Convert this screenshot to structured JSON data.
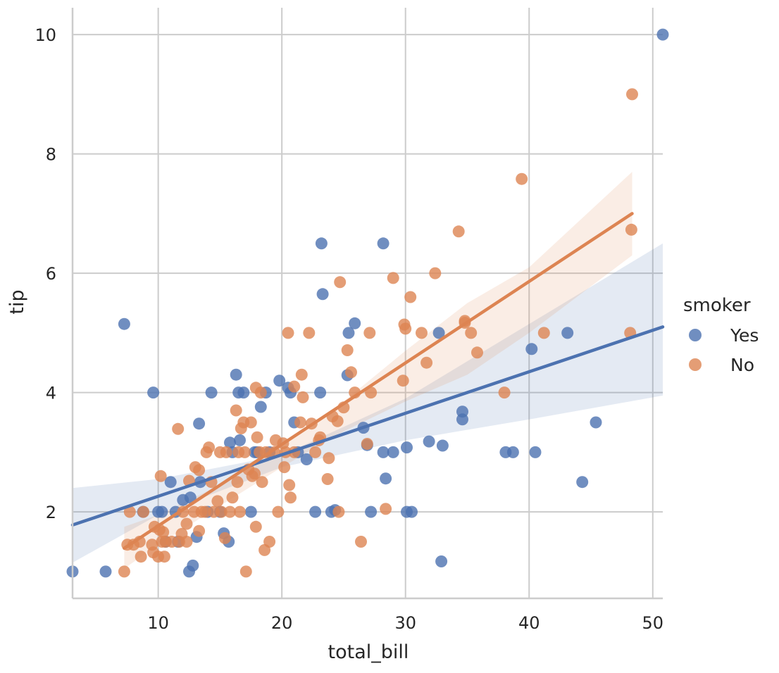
{
  "chart_data": {
    "type": "scatter",
    "xlabel": "total_bill",
    "ylabel": "tip",
    "xlim": [
      3.07,
      50.81
    ],
    "ylim": [
      0.55,
      10.45
    ],
    "xticks": [
      10,
      20,
      30,
      40,
      50
    ],
    "yticks": [
      2,
      4,
      6,
      8,
      10
    ],
    "grid": true,
    "legend": {
      "title": "smoker",
      "placement": "right"
    },
    "series": [
      {
        "name": "Yes",
        "color": "#4c72b0",
        "regression": {
          "x": [
            3.07,
            50.81
          ],
          "y": [
            1.78,
            5.1
          ]
        },
        "ci_band": {
          "x": [
            3.07,
            10,
            20,
            30,
            40,
            50.81
          ],
          "lower": [
            1.15,
            1.95,
            2.75,
            3.2,
            3.55,
            3.95
          ],
          "upper": [
            2.4,
            2.55,
            2.95,
            3.9,
            5.15,
            6.5
          ]
        },
        "points": [
          [
            3.07,
            1.0
          ],
          [
            5.75,
            1.0
          ],
          [
            7.25,
            5.15
          ],
          [
            8.77,
            2.0
          ],
          [
            9.6,
            4.0
          ],
          [
            10.0,
            2.0
          ],
          [
            10.3,
            2.0
          ],
          [
            10.6,
            1.5
          ],
          [
            11.0,
            2.5
          ],
          [
            11.4,
            2.0
          ],
          [
            11.6,
            1.5
          ],
          [
            12.0,
            2.2
          ],
          [
            12.5,
            1.0
          ],
          [
            12.6,
            2.24
          ],
          [
            12.8,
            1.1
          ],
          [
            13.1,
            1.58
          ],
          [
            13.3,
            3.48
          ],
          [
            13.4,
            2.5
          ],
          [
            14.0,
            2.0
          ],
          [
            14.3,
            4.0
          ],
          [
            15.0,
            2.0
          ],
          [
            15.3,
            1.64
          ],
          [
            15.7,
            1.5
          ],
          [
            15.8,
            3.16
          ],
          [
            16.0,
            3.0
          ],
          [
            16.3,
            4.3
          ],
          [
            16.5,
            4.0
          ],
          [
            16.6,
            3.2
          ],
          [
            16.9,
            4.0
          ],
          [
            17.5,
            2.0
          ],
          [
            17.8,
            3.0
          ],
          [
            18.0,
            3.0
          ],
          [
            18.3,
            3.76
          ],
          [
            18.7,
            4.0
          ],
          [
            19.0,
            3.0
          ],
          [
            19.8,
            4.2
          ],
          [
            20.5,
            4.08
          ],
          [
            20.7,
            4.0
          ],
          [
            21.0,
            3.5
          ],
          [
            21.3,
            3.0
          ],
          [
            22.0,
            2.88
          ],
          [
            22.7,
            2.0
          ],
          [
            23.1,
            4.0
          ],
          [
            23.2,
            6.5
          ],
          [
            23.3,
            5.65
          ],
          [
            24.0,
            2.0
          ],
          [
            24.3,
            2.03
          ],
          [
            25.3,
            4.29
          ],
          [
            25.4,
            5.0
          ],
          [
            25.9,
            5.16
          ],
          [
            26.6,
            3.41
          ],
          [
            26.9,
            3.12
          ],
          [
            27.2,
            2.0
          ],
          [
            28.2,
            6.5
          ],
          [
            28.2,
            3.0
          ],
          [
            28.4,
            2.56
          ],
          [
            29.0,
            3.0
          ],
          [
            30.1,
            3.08
          ],
          [
            30.1,
            2.0
          ],
          [
            30.5,
            2.0
          ],
          [
            31.9,
            3.18
          ],
          [
            32.7,
            5.0
          ],
          [
            32.9,
            1.17
          ],
          [
            33.0,
            3.11
          ],
          [
            34.6,
            3.68
          ],
          [
            34.6,
            3.55
          ],
          [
            38.1,
            3.0
          ],
          [
            38.7,
            3.0
          ],
          [
            40.2,
            4.73
          ],
          [
            40.5,
            3.0
          ],
          [
            43.1,
            5.0
          ],
          [
            44.3,
            2.5
          ],
          [
            45.4,
            3.5
          ],
          [
            50.81,
            10.0
          ]
        ]
      },
      {
        "name": "No",
        "color": "#dd8452",
        "regression": {
          "x": [
            7.25,
            48.33
          ],
          "y": [
            1.39,
            7.0
          ]
        },
        "ci_band": {
          "x": [
            7.25,
            10,
            15,
            20,
            25,
            30,
            35,
            40,
            48.33
          ],
          "lower": [
            1.05,
            1.45,
            2.1,
            2.75,
            3.35,
            3.85,
            4.3,
            5.0,
            6.3
          ],
          "upper": [
            1.75,
            1.95,
            2.45,
            3.1,
            3.85,
            4.7,
            5.5,
            6.1,
            7.7
          ]
        },
        "points": [
          [
            7.25,
            1.0
          ],
          [
            7.5,
            1.45
          ],
          [
            7.7,
            2.0
          ],
          [
            8.0,
            1.45
          ],
          [
            8.5,
            1.5
          ],
          [
            8.6,
            1.25
          ],
          [
            8.8,
            2.0
          ],
          [
            9.5,
            1.45
          ],
          [
            9.6,
            1.32
          ],
          [
            9.7,
            1.75
          ],
          [
            10.0,
            1.25
          ],
          [
            10.1,
            1.7
          ],
          [
            10.2,
            2.6
          ],
          [
            10.3,
            1.5
          ],
          [
            10.4,
            1.66
          ],
          [
            10.5,
            1.25
          ],
          [
            10.6,
            1.5
          ],
          [
            11.1,
            1.5
          ],
          [
            11.6,
            3.39
          ],
          [
            11.7,
            1.5
          ],
          [
            11.9,
            1.63
          ],
          [
            12.0,
            2.0
          ],
          [
            12.3,
            1.5
          ],
          [
            12.3,
            1.8
          ],
          [
            12.5,
            2.52
          ],
          [
            12.9,
            2.0
          ],
          [
            13.0,
            2.75
          ],
          [
            13.3,
            2.7
          ],
          [
            13.3,
            1.68
          ],
          [
            13.5,
            2.0
          ],
          [
            13.8,
            2.0
          ],
          [
            13.9,
            3.0
          ],
          [
            14.1,
            3.08
          ],
          [
            14.3,
            2.5
          ],
          [
            14.5,
            2.0
          ],
          [
            14.8,
            2.18
          ],
          [
            15.0,
            3.0
          ],
          [
            15.1,
            2.0
          ],
          [
            15.4,
            1.56
          ],
          [
            15.5,
            3.0
          ],
          [
            15.8,
            2.0
          ],
          [
            16.0,
            2.24
          ],
          [
            16.3,
            3.7
          ],
          [
            16.4,
            2.5
          ],
          [
            16.5,
            3.0
          ],
          [
            16.6,
            2.0
          ],
          [
            16.7,
            3.4
          ],
          [
            16.9,
            3.5
          ],
          [
            17.0,
            3.0
          ],
          [
            17.1,
            1.0
          ],
          [
            17.3,
            2.71
          ],
          [
            17.5,
            3.5
          ],
          [
            17.6,
            2.6
          ],
          [
            17.8,
            2.64
          ],
          [
            17.9,
            4.08
          ],
          [
            17.9,
            1.75
          ],
          [
            18.0,
            3.25
          ],
          [
            18.2,
            3.0
          ],
          [
            18.3,
            4.0
          ],
          [
            18.4,
            2.5
          ],
          [
            18.6,
            1.36
          ],
          [
            18.7,
            3.0
          ],
          [
            19.0,
            1.5
          ],
          [
            19.4,
            3.0
          ],
          [
            19.5,
            3.2
          ],
          [
            19.7,
            2.0
          ],
          [
            20.1,
            3.15
          ],
          [
            20.2,
            2.75
          ],
          [
            20.3,
            3.0
          ],
          [
            20.5,
            5.0
          ],
          [
            20.6,
            2.45
          ],
          [
            20.7,
            2.24
          ],
          [
            21.0,
            3.0
          ],
          [
            21.0,
            4.1
          ],
          [
            21.5,
            3.5
          ],
          [
            21.6,
            4.3
          ],
          [
            21.7,
            3.92
          ],
          [
            22.2,
            5.0
          ],
          [
            22.4,
            3.48
          ],
          [
            22.7,
            3.0
          ],
          [
            23.0,
            3.2
          ],
          [
            23.1,
            3.25
          ],
          [
            23.7,
            2.55
          ],
          [
            23.8,
            2.9
          ],
          [
            24.1,
            3.6
          ],
          [
            24.5,
            3.52
          ],
          [
            24.6,
            2.0
          ],
          [
            24.7,
            5.85
          ],
          [
            25.0,
            3.75
          ],
          [
            25.3,
            4.71
          ],
          [
            25.6,
            4.34
          ],
          [
            25.9,
            4.0
          ],
          [
            26.4,
            1.5
          ],
          [
            26.9,
            3.14
          ],
          [
            27.1,
            5.0
          ],
          [
            27.2,
            4.0
          ],
          [
            28.4,
            2.05
          ],
          [
            29.0,
            5.92
          ],
          [
            29.8,
            4.2
          ],
          [
            29.9,
            5.14
          ],
          [
            30.0,
            5.07
          ],
          [
            30.4,
            5.6
          ],
          [
            31.3,
            5.0
          ],
          [
            31.7,
            4.5
          ],
          [
            32.4,
            6.0
          ],
          [
            34.3,
            6.7
          ],
          [
            34.8,
            5.17
          ],
          [
            34.8,
            5.2
          ],
          [
            35.3,
            5.0
          ],
          [
            35.8,
            4.67
          ],
          [
            38.0,
            4.0
          ],
          [
            39.4,
            7.58
          ],
          [
            41.2,
            5.0
          ],
          [
            48.17,
            5.0
          ],
          [
            48.27,
            6.73
          ],
          [
            48.33,
            9.0
          ]
        ]
      }
    ]
  }
}
